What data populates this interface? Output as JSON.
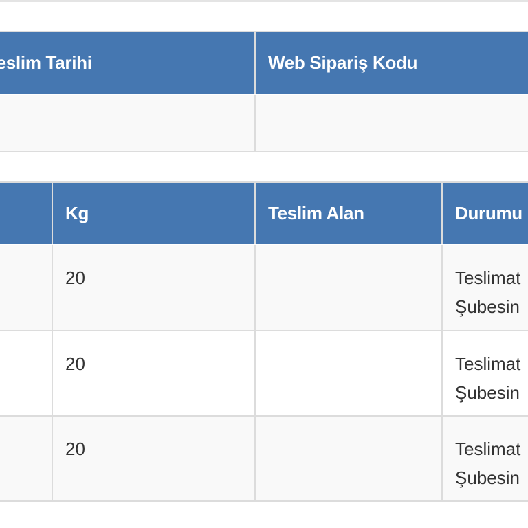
{
  "table1": {
    "headers": [
      "Teslim Tarihi",
      "Web Sipariş Kodu"
    ],
    "row": [
      "",
      ""
    ]
  },
  "table2": {
    "headers": [
      "",
      "Kg",
      "Teslim Alan",
      "Durumu"
    ],
    "rows": [
      {
        "kg": "20",
        "teslim_alan": "",
        "durum_line1": "Teslimat",
        "durum_line2": "Şubesin"
      },
      {
        "kg": "20",
        "teslim_alan": "",
        "durum_line1": "Teslimat",
        "durum_line2": "Şubesin"
      },
      {
        "kg": "20",
        "teslim_alan": "",
        "durum_line1": "Teslimat",
        "durum_line2": "Şubesin"
      }
    ]
  },
  "colors": {
    "header_bg": "#4577b1",
    "stripe": "#f9f9f9",
    "border": "#dcdcdc"
  }
}
